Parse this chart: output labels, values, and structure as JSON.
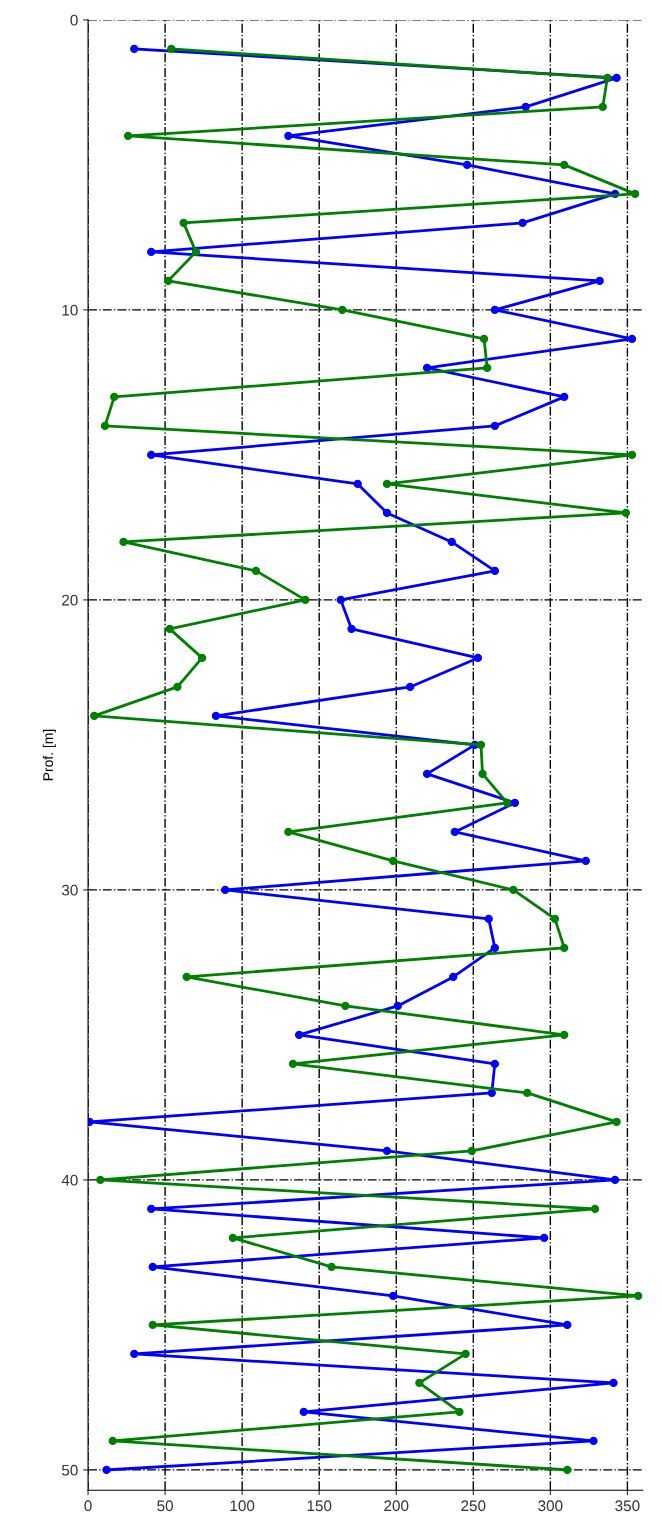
{
  "chart_data": {
    "type": "line",
    "ylabel": "Prof. [m]",
    "series": [
      {
        "color": "#0000ff",
        "x": [
          30,
          343,
          284,
          130,
          246,
          342,
          282,
          41,
          332,
          264,
          353,
          220,
          309,
          264,
          41,
          175,
          194,
          236,
          264,
          164,
          171,
          253,
          209,
          83,
          251,
          220,
          277,
          238,
          323,
          89,
          260,
          264,
          237,
          201,
          137,
          264,
          262,
          1,
          194,
          342,
          41,
          296,
          42,
          198,
          311,
          30,
          341,
          140,
          328,
          12
        ],
        "values": [
          1,
          2,
          3,
          4,
          5,
          6,
          7,
          8,
          9,
          10,
          11,
          12,
          13,
          14,
          15,
          16,
          17,
          18,
          19,
          20,
          21,
          22,
          23,
          24,
          25,
          26,
          27,
          28,
          29,
          30,
          31,
          32,
          33,
          34,
          35,
          36,
          37,
          38,
          39,
          40,
          41,
          42,
          43,
          44,
          45,
          46,
          47,
          48,
          49,
          50
        ]
      },
      {
        "color": "#008000",
        "x": [
          54,
          337,
          334,
          26,
          309,
          355,
          62,
          70,
          52,
          165,
          257,
          259,
          17,
          11,
          353,
          194,
          349,
          23,
          109,
          141,
          53,
          74,
          58,
          4,
          255,
          256,
          272,
          130,
          198,
          276,
          303,
          309,
          64,
          167,
          309,
          133,
          285,
          343,
          249,
          8,
          329,
          94,
          158,
          357,
          42,
          245,
          215,
          241,
          16,
          311
        ],
        "values": [
          1,
          2,
          3,
          4,
          5,
          6,
          7,
          8,
          9,
          10,
          11,
          12,
          13,
          14,
          15,
          16,
          17,
          18,
          19,
          20,
          21,
          22,
          23,
          24,
          25,
          26,
          27,
          28,
          29,
          30,
          31,
          32,
          33,
          34,
          35,
          36,
          37,
          38,
          39,
          40,
          41,
          42,
          43,
          44,
          45,
          46,
          47,
          48,
          49,
          50
        ]
      }
    ],
    "xlim": [
      0,
      360
    ],
    "xticks": [
      0,
      50,
      100,
      150,
      200,
      250,
      300,
      350
    ],
    "ylim": [
      50.7,
      0
    ],
    "yticks": [
      0,
      10,
      20,
      30,
      40,
      50
    ],
    "grid": true,
    "marker": "circle",
    "line_style": "solid"
  }
}
